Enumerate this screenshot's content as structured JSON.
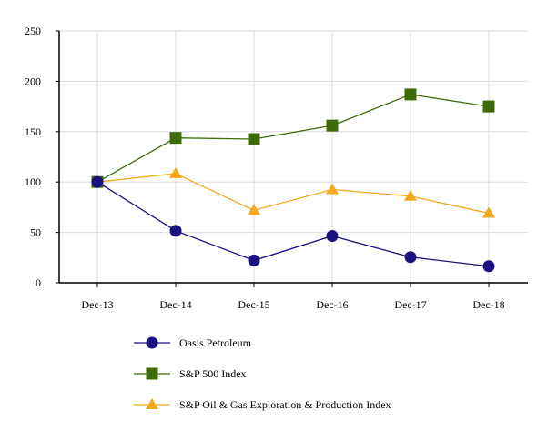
{
  "chart_data": {
    "type": "line",
    "title": "",
    "xlabel": "",
    "ylabel": "",
    "categories": [
      "Dec-13",
      "Dec-14",
      "Dec-15",
      "Dec-16",
      "Dec-17",
      "Dec-18"
    ],
    "ylim": [
      0,
      250
    ],
    "yticks": [
      0,
      50,
      100,
      150,
      200,
      250
    ],
    "grid": true,
    "legend_position": "bottom",
    "series": [
      {
        "name": "Oasis Petroleum",
        "color": "#1a1080",
        "marker": "circle",
        "values": [
          100,
          51.6,
          22.2,
          46.5,
          25.5,
          16.5
        ]
      },
      {
        "name": "S&P 500 Index",
        "color": "#3d6b0a",
        "marker": "square",
        "values": [
          100,
          143.8,
          142.6,
          156.0,
          186.9,
          175.0
        ]
      },
      {
        "name": "S&P Oil & Gas Exploration & Production Index",
        "color": "#f5a81c",
        "marker": "triangle",
        "values": [
          100,
          108.4,
          71.9,
          92.5,
          86.0,
          69.0
        ]
      }
    ]
  }
}
